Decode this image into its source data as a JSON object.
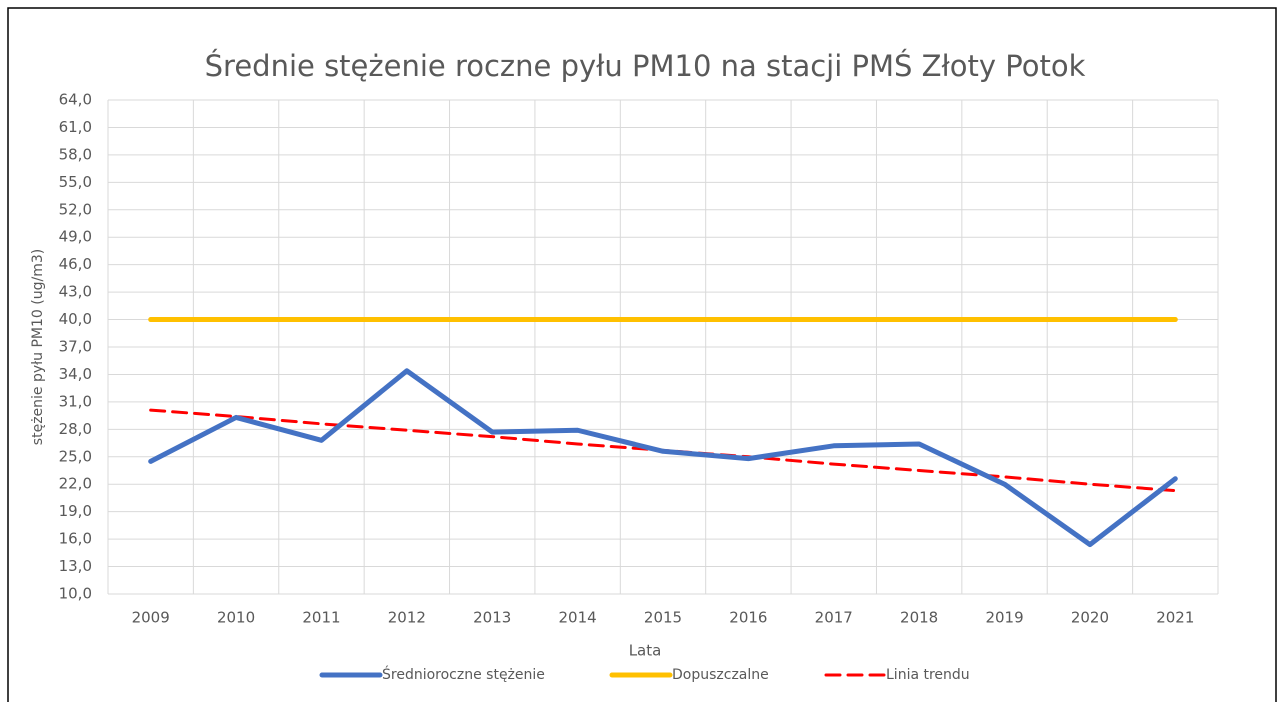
{
  "chart_data": {
    "type": "line",
    "title": "Średnie stężenie roczne pyłu PM10 na stacji PMŚ Złoty Potok",
    "x_label": "Lata",
    "y_label": "stężenie pyłu PM10 (ug/m3)",
    "categories": [
      "2009",
      "2010",
      "2011",
      "2012",
      "2013",
      "2014",
      "2015",
      "2016",
      "2017",
      "2018",
      "2019",
      "2020",
      "2021"
    ],
    "series": [
      {
        "name": "Średnioroczne stężenie",
        "color": "#4472c4",
        "dash": false,
        "values": [
          24.5,
          29.3,
          26.8,
          34.4,
          27.7,
          27.9,
          25.6,
          24.8,
          26.2,
          26.4,
          22.0,
          15.4,
          22.6
        ]
      },
      {
        "name": "Dopuszczalne",
        "color": "#ffc000",
        "dash": false,
        "values": [
          40,
          40,
          40,
          40,
          40,
          40,
          40,
          40,
          40,
          40,
          40,
          40,
          40
        ]
      },
      {
        "name": "Linia trendu",
        "color": "#ff0000",
        "dash": true,
        "values": [
          30.1,
          29.4,
          28.6,
          27.9,
          27.2,
          26.4,
          25.7,
          25.0,
          24.2,
          23.5,
          22.8,
          22.0,
          21.3
        ]
      }
    ],
    "ylim": [
      10,
      64
    ],
    "yticks": [
      {
        "value": 10,
        "label": "10,0"
      },
      {
        "value": 13,
        "label": "13,0"
      },
      {
        "value": 16,
        "label": "16,0"
      },
      {
        "value": 19,
        "label": "19,0"
      },
      {
        "value": 22,
        "label": "22,0"
      },
      {
        "value": 25,
        "label": "25,0"
      },
      {
        "value": 28,
        "label": "28,0"
      },
      {
        "value": 31,
        "label": "31,0"
      },
      {
        "value": 34,
        "label": "34,0"
      },
      {
        "value": 37,
        "label": "37,0"
      },
      {
        "value": 40,
        "label": "40,0"
      },
      {
        "value": 43,
        "label": "43,0"
      },
      {
        "value": 46,
        "label": "46,0"
      },
      {
        "value": 49,
        "label": "49,0"
      },
      {
        "value": 52,
        "label": "52,0"
      },
      {
        "value": 55,
        "label": "55,0"
      },
      {
        "value": 58,
        "label": "58,0"
      },
      {
        "value": 61,
        "label": "61,0"
      },
      {
        "value": 64,
        "label": "64,0"
      }
    ],
    "grid": true,
    "legend": "bottom"
  }
}
